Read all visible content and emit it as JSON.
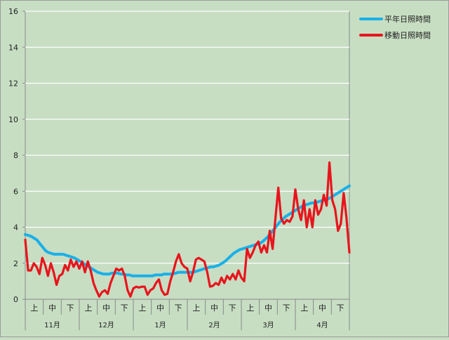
{
  "chart_data": {
    "type": "line",
    "ylim": [
      0,
      16
    ],
    "yticks": [
      0,
      2,
      4,
      6,
      8,
      10,
      12,
      14,
      16
    ],
    "grid": true,
    "legend_position": "top-right",
    "x_sub_labels": [
      "上",
      "中",
      "下"
    ],
    "months": [
      "11月",
      "12月",
      "1月",
      "2月",
      "3月",
      "4月"
    ],
    "series": [
      {
        "name": "平年日照時間",
        "color": "#1ab0e8",
        "values": [
          3.6,
          3.55,
          3.5,
          3.4,
          3.3,
          3.1,
          2.9,
          2.7,
          2.6,
          2.55,
          2.5,
          2.5,
          2.5,
          2.5,
          2.45,
          2.4,
          2.35,
          2.3,
          2.2,
          2.1,
          2.0,
          1.9,
          1.8,
          1.7,
          1.6,
          1.5,
          1.45,
          1.4,
          1.4,
          1.4,
          1.45,
          1.45,
          1.45,
          1.4,
          1.4,
          1.35,
          1.35,
          1.3,
          1.3,
          1.3,
          1.3,
          1.3,
          1.3,
          1.3,
          1.3,
          1.35,
          1.35,
          1.35,
          1.4,
          1.4,
          1.4,
          1.4,
          1.45,
          1.5,
          1.5,
          1.5,
          1.5,
          1.5,
          1.5,
          1.55,
          1.6,
          1.65,
          1.7,
          1.75,
          1.8,
          1.8,
          1.85,
          1.9,
          2.0,
          2.1,
          2.25,
          2.4,
          2.55,
          2.65,
          2.75,
          2.8,
          2.85,
          2.9,
          2.95,
          3.0,
          3.05,
          3.1,
          3.2,
          3.35,
          3.5,
          3.7,
          3.9,
          4.1,
          4.3,
          4.45,
          4.6,
          4.7,
          4.8,
          4.9,
          5.0,
          5.1,
          5.2,
          5.25,
          5.3,
          5.35,
          5.35,
          5.4,
          5.45,
          5.5,
          5.55,
          5.6,
          5.7,
          5.8,
          5.9,
          6.0,
          6.1,
          6.2,
          6.3
        ]
      },
      {
        "name": "移動日照時間",
        "color": "#e8141c",
        "values": [
          3.3,
          1.6,
          1.6,
          2.0,
          1.8,
          1.4,
          2.3,
          1.9,
          1.3,
          2.0,
          1.5,
          0.8,
          1.3,
          1.4,
          1.9,
          1.6,
          2.2,
          1.8,
          2.1,
          1.7,
          2.1,
          1.5,
          2.1,
          1.6,
          0.9,
          0.5,
          0.15,
          0.4,
          0.5,
          0.3,
          0.9,
          1.3,
          1.7,
          1.6,
          1.7,
          1.3,
          0.5,
          0.15,
          0.6,
          0.7,
          0.65,
          0.7,
          0.7,
          0.25,
          0.5,
          0.6,
          0.9,
          1.1,
          0.5,
          0.25,
          0.3,
          1.0,
          1.5,
          2.1,
          2.5,
          2.0,
          1.8,
          1.7,
          1.0,
          1.5,
          2.2,
          2.3,
          2.2,
          2.1,
          1.5,
          0.7,
          0.75,
          0.9,
          0.8,
          1.2,
          0.9,
          1.3,
          1.1,
          1.4,
          1.1,
          1.6,
          1.2,
          1.0,
          2.8,
          2.3,
          2.6,
          3.0,
          3.2,
          2.6,
          3.0,
          2.6,
          3.8,
          2.8,
          4.5,
          6.2,
          4.5,
          4.2,
          4.4,
          4.3,
          4.6,
          6.1,
          5.0,
          4.4,
          5.5,
          4.0,
          5.0,
          4.0,
          5.5,
          4.7,
          5.0,
          5.8,
          5.2,
          7.6,
          5.5,
          5.0,
          3.8,
          4.2,
          5.9,
          4.5,
          2.6
        ]
      }
    ]
  }
}
